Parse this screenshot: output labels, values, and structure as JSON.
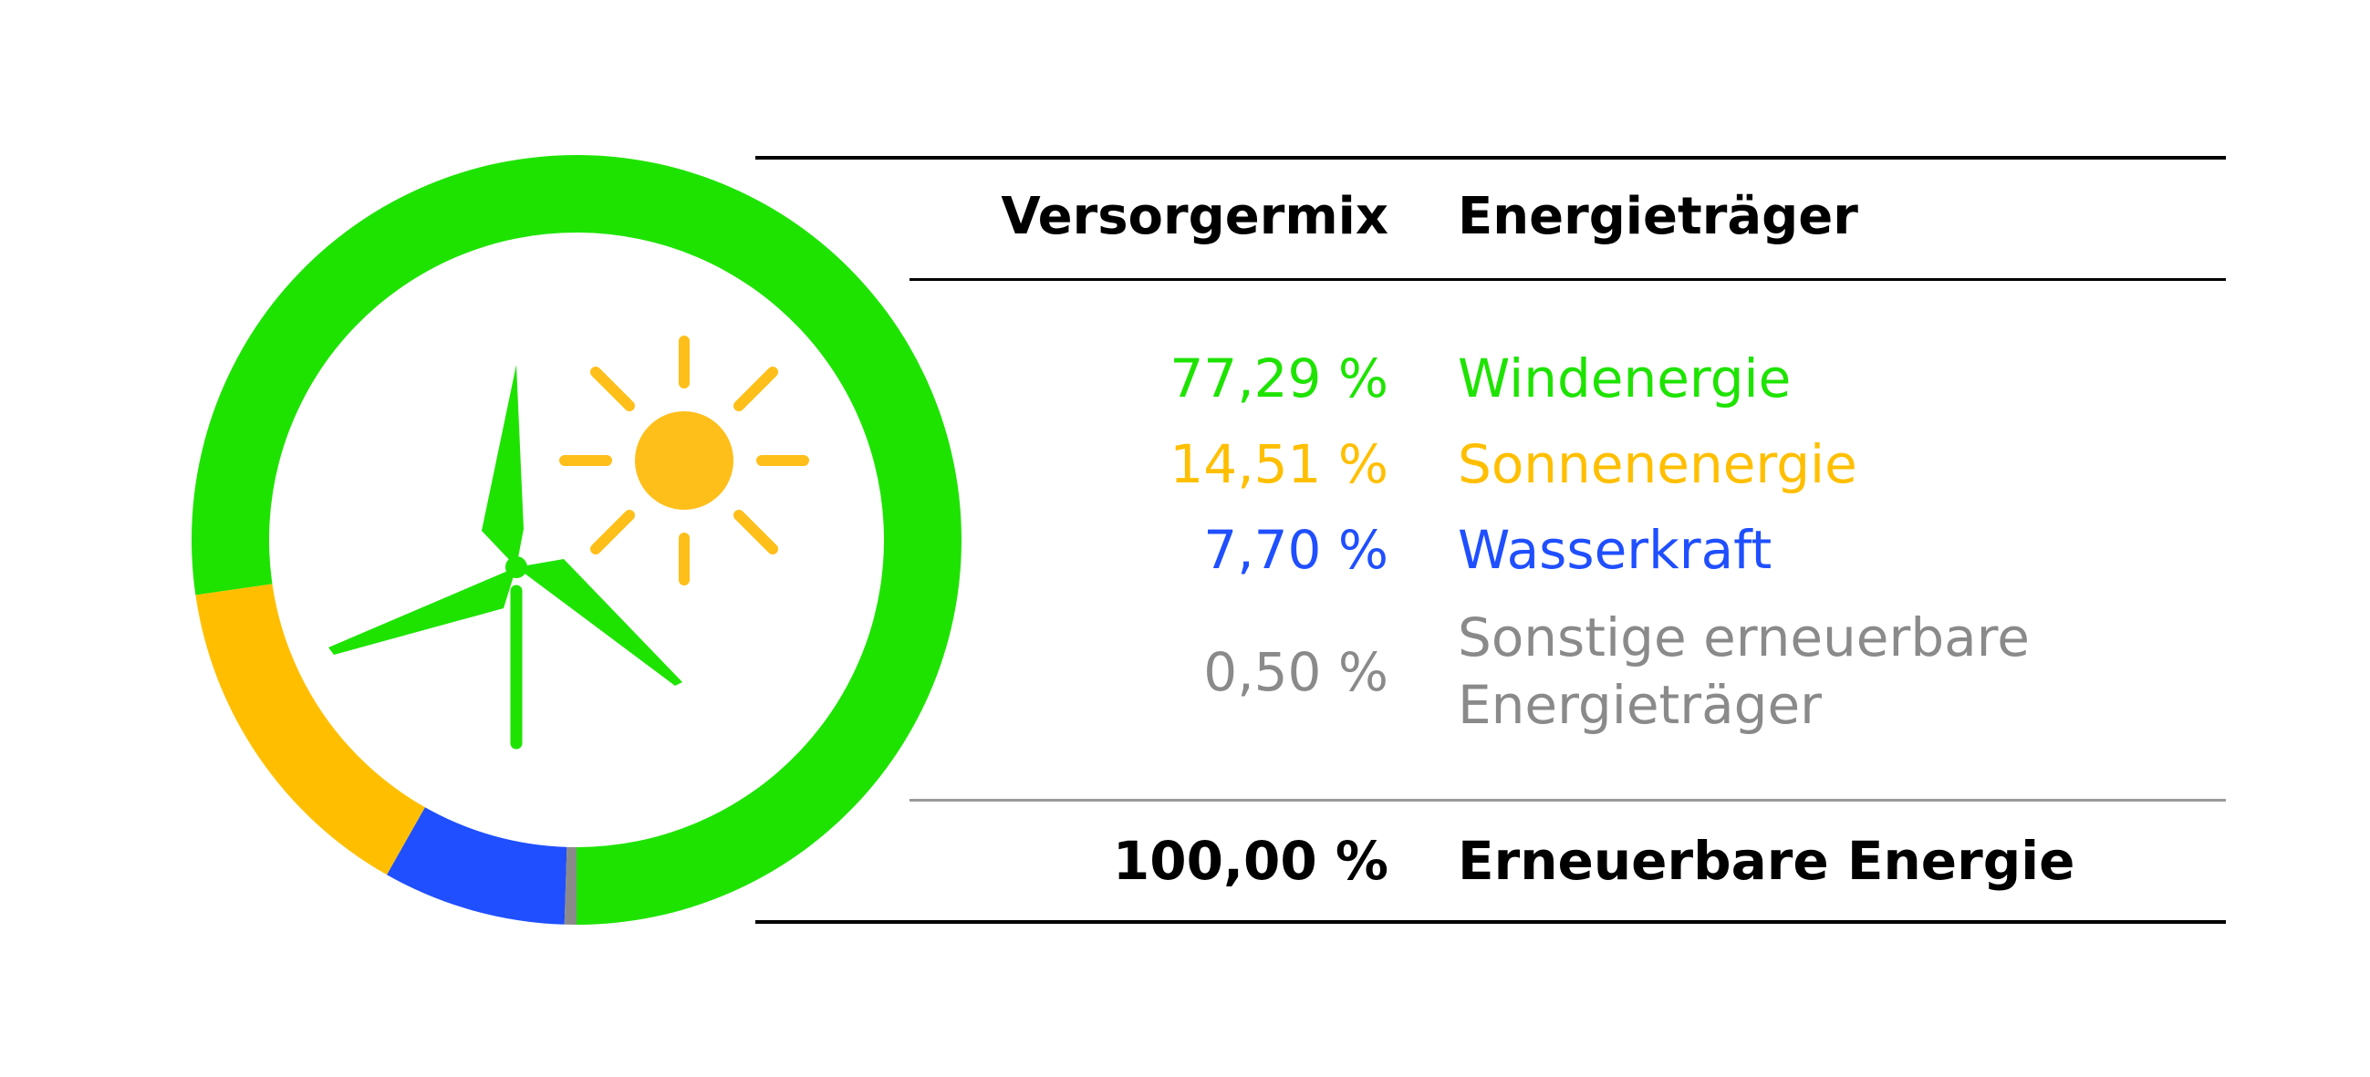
{
  "colors": {
    "wind": "#1ee300",
    "solar": "#ffbf00",
    "hydro": "#1f4fff",
    "other": "#8a8a8a",
    "icon_wind": "#1ee300",
    "icon_sun": "#ffbf1a"
  },
  "icons": [
    "wind-turbine-icon",
    "sun-icon"
  ],
  "table": {
    "header": {
      "mix": "Versorgermix",
      "source": "Energieträger"
    },
    "total": {
      "pct": "100,00 %",
      "label": "Erneuerbare Energie"
    }
  },
  "chart_data": {
    "type": "pie",
    "donut": true,
    "segments": [
      {
        "pct_text": "77,29 %",
        "value": 77.29,
        "label": "Windenergie",
        "color": "#1ee300"
      },
      {
        "pct_text": "14,51 %",
        "value": 14.51,
        "label": "Sonnenenergie",
        "color": "#ffbf00"
      },
      {
        "pct_text": "7,70 %",
        "value": 7.7,
        "label": "Wasserkraft",
        "color": "#1f4fff"
      },
      {
        "pct_text": "0,50 %",
        "value": 0.5,
        "label": "Sonstige erneuerbare Energieträger",
        "color": "#8a8a8a"
      }
    ]
  }
}
